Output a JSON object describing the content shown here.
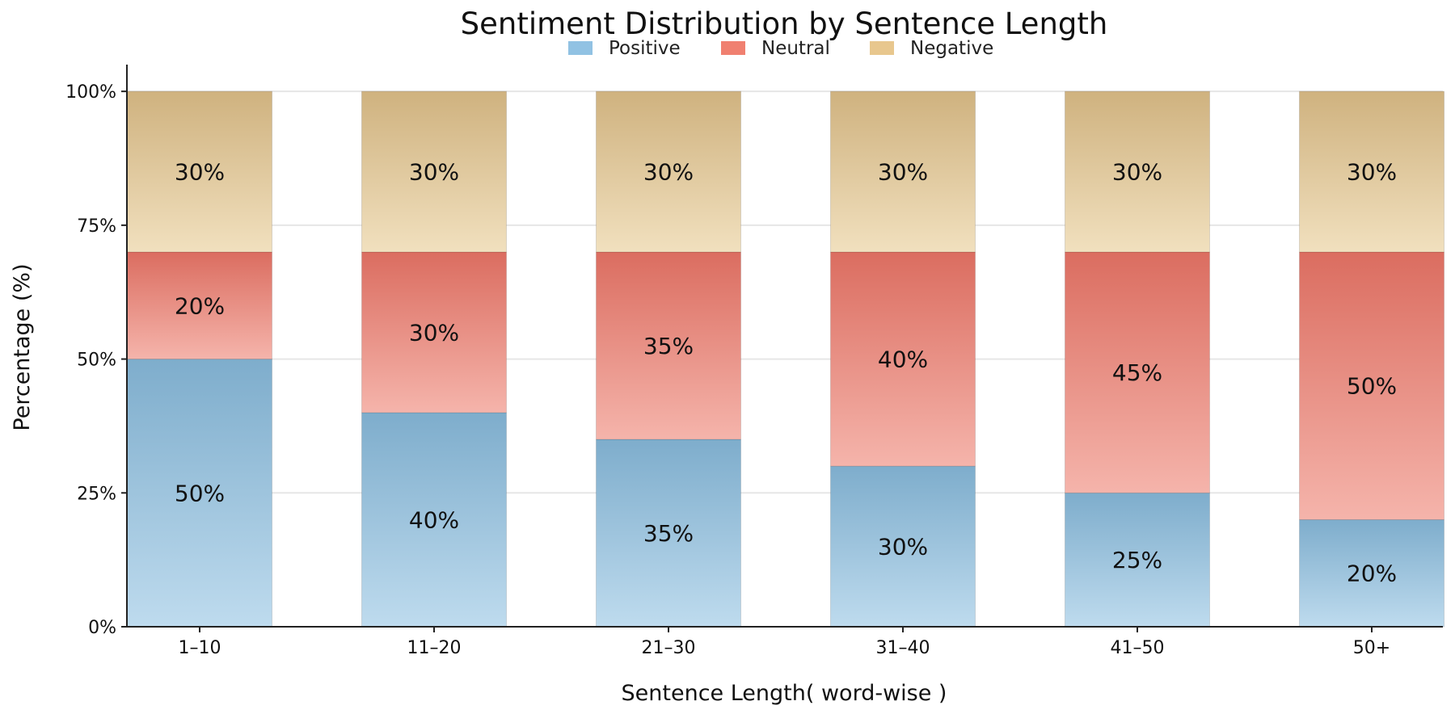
{
  "chart_data": {
    "type": "bar",
    "stacked": true,
    "title": "Sentiment Distribution by Sentence Length",
    "xlabel": "Sentence Length( word-wise )",
    "ylabel": "Percentage (%)",
    "categories": [
      "1–10",
      "11–20",
      "21–30",
      "31–40",
      "41–50",
      "50+"
    ],
    "series": [
      {
        "name": "Positive",
        "values": [
          50,
          40,
          35,
          30,
          25,
          20
        ],
        "color_top": "#7eadcc",
        "color_bottom": "#bedbee",
        "labels": [
          "50%",
          "40%",
          "35%",
          "30%",
          "25%",
          "20%"
        ]
      },
      {
        "name": "Neutral",
        "values": [
          20,
          30,
          35,
          40,
          45,
          50
        ],
        "color_top": "#db6d60",
        "color_bottom": "#f5b4ab",
        "labels": [
          "20%",
          "30%",
          "35%",
          "40%",
          "45%",
          "50%"
        ]
      },
      {
        "name": "Negative",
        "values": [
          30,
          30,
          30,
          30,
          30,
          30
        ],
        "color_top": "#cfb27f",
        "color_bottom": "#f1e0be",
        "labels": [
          "30%",
          "30%",
          "30%",
          "30%",
          "30%",
          "30%"
        ]
      }
    ],
    "legend_colors": [
      "#91c2e3",
      "#f08070",
      "#e8c78e"
    ],
    "ylim": [
      0,
      105
    ],
    "yticks": [
      0,
      25,
      50,
      75,
      100
    ],
    "ytick_labels": [
      "0%",
      "25%",
      "50%",
      "75%",
      "100%"
    ],
    "grid": "horizontal",
    "legend_position": "top-center"
  }
}
